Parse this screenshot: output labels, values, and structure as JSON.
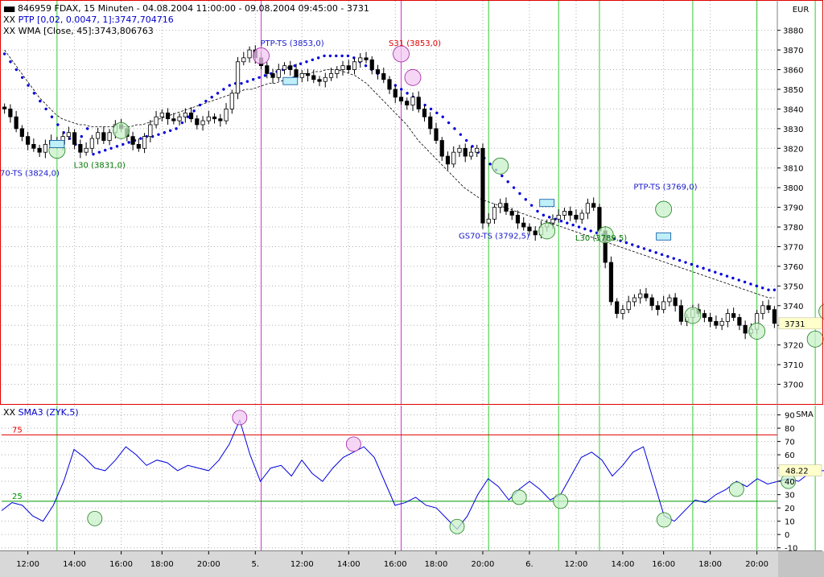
{
  "header": {
    "title": "846959  FDAX, 15 Minuten - 04.08.2004 11:00:00 - 09.08.2004 09:45:00 - 3731",
    "indicator_ptp": "PTP [0,02, 0.0047, 1]:3747,704716",
    "indicator_wma": "WMA [Close, 45]:3743,806763",
    "indicator_marker": "XX"
  },
  "colors": {
    "frame": "#e00000",
    "candle": "#000000",
    "ptp": "#0000dd",
    "wma": "#000000",
    "sma": "#0000dd",
    "vline_green": "#33cc33",
    "vline_magenta": "#cc33cc",
    "level75": "#e00000",
    "level25": "#009900",
    "circle_green_fill": "#c8f0c8",
    "circle_magenta_fill": "#f2c8f2",
    "label_blue": "#1a1acc",
    "label_green": "#007700",
    "label_red": "#e00000",
    "price_box": "#ffffcc"
  },
  "chart_data": [
    {
      "type": "candlestick",
      "title": "846959  FDAX, 15 Minuten - 04.08.2004 11:00:00 - 09.08.2004 09:45:00 - 3731",
      "currency": "EUR",
      "ylim": [
        3690,
        3895
      ],
      "yticks": [
        3700,
        3710,
        3720,
        3730,
        3740,
        3750,
        3760,
        3770,
        3780,
        3790,
        3800,
        3810,
        3820,
        3830,
        3840,
        3850,
        3860,
        3870,
        3880
      ],
      "last_price": "3731",
      "x_tick_labels": [
        "12:00",
        "14:00",
        "16:00",
        "18:00",
        "20:00",
        "5.",
        "12:00",
        "14:00",
        "16:00",
        "18:00",
        "20:00",
        "6.",
        "12:00",
        "14:00",
        "16:00",
        "18:00",
        "20:00"
      ],
      "close_series": [
        3840,
        3836,
        3830,
        3826,
        3822,
        3820,
        3818,
        3822,
        3824,
        3822,
        3826,
        3828,
        3822,
        3818,
        3820,
        3825,
        3828,
        3824,
        3828,
        3832,
        3830,
        3826,
        3822,
        3820,
        3826,
        3832,
        3836,
        3838,
        3835,
        3834,
        3836,
        3838,
        3835,
        3832,
        3834,
        3836,
        3835,
        3834,
        3840,
        3848,
        3864,
        3866,
        3870,
        3866,
        3862,
        3858,
        3856,
        3860,
        3862,
        3860,
        3856,
        3858,
        3857,
        3855,
        3854,
        3856,
        3858,
        3860,
        3862,
        3860,
        3864,
        3866,
        3865,
        3860,
        3858,
        3855,
        3850,
        3846,
        3844,
        3842,
        3846,
        3840,
        3836,
        3830,
        3824,
        3816,
        3812,
        3818,
        3820,
        3816,
        3818,
        3820,
        3782,
        3784,
        3790,
        3792,
        3788,
        3786,
        3782,
        3780,
        3778,
        3776,
        3780,
        3782,
        3784,
        3786,
        3788,
        3786,
        3784,
        3787,
        3792,
        3790,
        3778,
        3762,
        3742,
        3736,
        3738,
        3742,
        3744,
        3746,
        3744,
        3740,
        3738,
        3742,
        3744,
        3740,
        3732,
        3734,
        3738,
        3736,
        3734,
        3732,
        3730,
        3732,
        3736,
        3734,
        3730,
        3726,
        3728,
        3736,
        3740,
        3738,
        3731
      ],
      "series": [
        {
          "name": "PTP",
          "last_value": "3747,704716",
          "style": "dotted"
        },
        {
          "name": "WMA",
          "last_value": "3743,806763",
          "style": "dashed"
        }
      ],
      "ptp_series": [
        3868,
        3864,
        3860,
        3856,
        3852,
        3848,
        3844,
        3840,
        3836,
        3832,
        3828,
        3825,
        3822,
        3826,
        3830,
        3817,
        3818,
        3819,
        3820,
        3821,
        3822,
        3823,
        3824,
        3825,
        3826,
        3826,
        3827,
        3828,
        3829,
        3830,
        3833,
        3836,
        3839,
        3842,
        3844,
        3846,
        3848,
        3850,
        3852,
        3853,
        3853,
        3854,
        3855,
        3856,
        3857,
        3858,
        3859,
        3860,
        3861,
        3862,
        3863,
        3864,
        3865,
        3866,
        3867,
        3867,
        3867,
        3867,
        3867,
        3866,
        3864,
        3862,
        3860,
        3858,
        3856,
        3854,
        3852,
        3850,
        3848,
        3846,
        3844,
        3842,
        3840,
        3838,
        3836,
        3833,
        3830,
        3827,
        3824,
        3821,
        3818,
        3815,
        3812,
        3809,
        3806,
        3803,
        3800,
        3797,
        3794,
        3791,
        3788,
        3786,
        3785,
        3784,
        3783,
        3782,
        3781,
        3780,
        3779,
        3778,
        3777,
        3776,
        3775,
        3774,
        3773,
        3772,
        3771,
        3770,
        3769,
        3768,
        3767,
        3766,
        3765,
        3764,
        3763,
        3762,
        3761,
        3760,
        3759,
        3758,
        3757,
        3756,
        3755,
        3754,
        3753,
        3752,
        3751,
        3750,
        3749,
        3748,
        3748
      ],
      "wma_series": [
        3870,
        3866,
        3862,
        3858,
        3854,
        3850,
        3846,
        3843,
        3840,
        3837,
        3835,
        3834,
        3833,
        3832,
        3832,
        3831,
        3831,
        3831,
        3831,
        3831,
        3831,
        3831,
        3831,
        3832,
        3832,
        3833,
        3834,
        3835,
        3836,
        3837,
        3838,
        3839,
        3840,
        3841,
        3842,
        3843,
        3844,
        3845,
        3846,
        3847,
        3848,
        3849,
        3850,
        3850,
        3851,
        3852,
        3853,
        3853,
        3854,
        3855,
        3856,
        3857,
        3858,
        3858,
        3859,
        3859,
        3860,
        3860,
        3860,
        3859,
        3858,
        3857,
        3855,
        3853,
        3850,
        3847,
        3844,
        3841,
        3838,
        3835,
        3832,
        3828,
        3824,
        3821,
        3818,
        3815,
        3812,
        3809,
        3806,
        3803,
        3800,
        3798,
        3796,
        3794,
        3793,
        3792,
        3791,
        3790,
        3789,
        3788,
        3787,
        3786,
        3785,
        3784,
        3783,
        3782,
        3781,
        3780,
        3779,
        3778,
        3777,
        3776,
        3775,
        3774,
        3773,
        3772,
        3771,
        3770,
        3769,
        3768,
        3767,
        3766,
        3765,
        3764,
        3763,
        3762,
        3761,
        3760,
        3759,
        3758,
        3757,
        3756,
        3755,
        3754,
        3753,
        3752,
        3751,
        3750,
        3749,
        3748,
        3747,
        3746,
        3745,
        3744,
        3744
      ],
      "annotations": [
        {
          "text": "70-TS (3824,0)",
          "x": 0,
          "y": 3806,
          "color": "blue"
        },
        {
          "text": "L30 (3831,0)",
          "x": 16,
          "y": 3810,
          "color": "green"
        },
        {
          "text": "PTP-TS (3853,0)",
          "x": 48,
          "y": 3872,
          "color": "blue"
        },
        {
          "text": "S31 (3853,0)",
          "x": 70,
          "y": 3872,
          "color": "red"
        },
        {
          "text": "GS70-TS (3792,5)",
          "x": 82,
          "y": 3774,
          "color": "blue"
        },
        {
          "text": "L30 (3789,5)",
          "x": 102,
          "y": 3773,
          "color": "green"
        },
        {
          "text": "PTP-TS (3769,0)",
          "x": 112,
          "y": 3799,
          "color": "blue"
        }
      ],
      "signal_circles_price": [
        {
          "x": 9,
          "y": 3819,
          "kind": "green"
        },
        {
          "x": 20,
          "y": 3829,
          "kind": "green"
        },
        {
          "x": 44,
          "y": 3867,
          "kind": "magenta"
        },
        {
          "x": 68,
          "y": 3868,
          "kind": "magenta"
        },
        {
          "x": 70,
          "y": 3856,
          "kind": "magenta"
        },
        {
          "x": 85,
          "y": 3811,
          "kind": "green"
        },
        {
          "x": 93,
          "y": 3778,
          "kind": "green"
        },
        {
          "x": 103,
          "y": 3776,
          "kind": "green"
        },
        {
          "x": 113,
          "y": 3789,
          "kind": "green"
        },
        {
          "x": 118,
          "y": 3735,
          "kind": "green"
        },
        {
          "x": 129,
          "y": 3727,
          "kind": "green"
        },
        {
          "x": 139,
          "y": 3723,
          "kind": "green"
        },
        {
          "x": 141,
          "y": 3737,
          "kind": "green"
        }
      ],
      "vertical_markers": [
        {
          "x": 9,
          "kind": "green"
        },
        {
          "x": 44,
          "kind": "magenta"
        },
        {
          "x": 68,
          "kind": "magenta"
        },
        {
          "x": 83,
          "kind": "green"
        },
        {
          "x": 95,
          "kind": "green"
        },
        {
          "x": 102,
          "kind": "green"
        },
        {
          "x": 118,
          "kind": "green"
        },
        {
          "x": 129,
          "kind": "green"
        },
        {
          "x": 139,
          "kind": "green"
        }
      ]
    },
    {
      "type": "line",
      "title": "SMA3 (ZYK,5)",
      "unit_label": "SMA",
      "ylim": [
        -12,
        97
      ],
      "yticks": [
        -10,
        0,
        10,
        20,
        30,
        40,
        50,
        60,
        70,
        80,
        90
      ],
      "levels": [
        {
          "value": 75,
          "label": "75",
          "color": "red"
        },
        {
          "value": 25,
          "label": "25",
          "color": "green"
        }
      ],
      "last_value": "48.22",
      "series": [
        {
          "name": "SMA3",
          "values": [
            18,
            24,
            22,
            14,
            10,
            22,
            40,
            64,
            58,
            50,
            48,
            56,
            66,
            60,
            52,
            56,
            54,
            48,
            52,
            50,
            48,
            56,
            68,
            86,
            60,
            40,
            50,
            52,
            44,
            56,
            46,
            40,
            50,
            58,
            62,
            66,
            58,
            40,
            22,
            24,
            28,
            22,
            20,
            12,
            4,
            14,
            30,
            42,
            36,
            26,
            34,
            40,
            34,
            26,
            30,
            44,
            58,
            62,
            56,
            44,
            52,
            62,
            66,
            40,
            14,
            10,
            18,
            26,
            24,
            30,
            34,
            40,
            36,
            42,
            38,
            40,
            42,
            40,
            46,
            48,
            48
          ]
        }
      ],
      "signal_circles": [
        {
          "x": 9,
          "y": 12,
          "kind": "green"
        },
        {
          "x": 23,
          "y": 88,
          "kind": "magenta"
        },
        {
          "x": 34,
          "y": 68,
          "kind": "magenta"
        },
        {
          "x": 44,
          "y": 6,
          "kind": "green"
        },
        {
          "x": 50,
          "y": 28,
          "kind": "green"
        },
        {
          "x": 54,
          "y": 25,
          "kind": "green"
        },
        {
          "x": 64,
          "y": 11,
          "kind": "green"
        },
        {
          "x": 71,
          "y": 34,
          "kind": "green"
        },
        {
          "x": 76,
          "y": 40,
          "kind": "green"
        }
      ]
    }
  ]
}
